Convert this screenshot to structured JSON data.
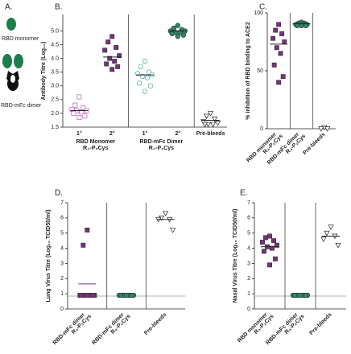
{
  "panel_a": {
    "label": "A.",
    "items": [
      "RBD monomer",
      "RBD-mFc dimer"
    ]
  },
  "chart_data": [
    {
      "type": "strip",
      "label": "B.",
      "y_label": "Antibody Titre (Log₁₀)",
      "ylim": [
        1.5,
        5.6
      ],
      "yticks": [
        1.5,
        {
          "value": 2,
          "label": "2.0"
        },
        2.5,
        {
          "value": 3,
          "label": "3.0"
        },
        3.5,
        {
          "value": 4,
          "label": "4.0"
        },
        4.5,
        {
          "value": 5,
          "label": "5.0"
        }
      ],
      "rotate_labels": false,
      "groups": [
        {
          "name": [
            "RBD Monomer",
            "R₄-P₂Cys"
          ],
          "series": [
            {
              "name": "1°",
              "color": "#b85cb8",
              "marker": "square",
              "filled": false,
              "values": [
                2.6,
                2.3,
                2.2,
                2.15,
                2.1,
                2.1,
                2.05,
                2.0,
                1.9,
                1.85
              ],
              "center_line": 2.1,
              "line_color": "#222222"
            },
            {
              "name": "2°",
              "color": "#7b2f80",
              "marker": "square",
              "filled": true,
              "values": [
                4.8,
                4.6,
                4.4,
                4.3,
                4.1,
                4.0,
                3.9,
                3.8,
                3.7,
                3.6
              ],
              "center_line": 4.05,
              "line_color": "#222222"
            }
          ]
        },
        {
          "name": [
            "RBD-mFc Dimer",
            "R₄-P₂Cys"
          ],
          "series": [
            {
              "name": "1°",
              "color": "#3aa89a",
              "marker": "circle",
              "filled": false,
              "values": [
                3.9,
                3.7,
                3.5,
                3.45,
                3.4,
                3.35,
                3.3,
                3.1,
                3.0,
                2.8
              ],
              "center_line": 3.4,
              "line_color": "#222222"
            },
            {
              "name": "2°",
              "color": "#2a8c6e",
              "marker": "circle",
              "filled": true,
              "values": [
                5.2,
                5.1,
                5.05,
                5.0,
                5.0,
                4.95,
                4.95,
                4.9,
                4.85,
                4.8
              ],
              "center_line": 5.0,
              "line_color": "#222222"
            }
          ]
        },
        {
          "name": [
            "Pre-bleeds"
          ],
          "series": [
            {
              "color": "#222222",
              "marker": "triangle",
              "filled": false,
              "values": [
                2.0,
                1.9,
                1.8,
                1.7,
                1.65,
                1.6,
                1.6,
                1.6
              ],
              "center_line": 1.75,
              "line_color": "#222222"
            }
          ]
        }
      ]
    },
    {
      "type": "strip",
      "label": "C.",
      "y_label": "% inhibition of RBD binding to ACE2",
      "ylim": [
        0,
        100
      ],
      "yticks": [
        0,
        50,
        100
      ],
      "rotate_labels": true,
      "groups": [
        {
          "name": [
            "RBD monomer",
            "R₄-P₂Cys"
          ],
          "series": [
            {
              "color": "#7b2f80",
              "marker": "square",
              "filled": true,
              "values": [
                90,
                85,
                82,
                78,
                75,
                70,
                65,
                55,
                45,
                40
              ],
              "center_line": 73,
              "line_color": "#222222"
            }
          ]
        },
        {
          "name": [
            "RBD-mFc dimer",
            "R₄-P₂Cys"
          ],
          "series": [
            {
              "color": "#2a8c6e",
              "marker": "circle",
              "filled": true,
              "values": [
                92,
                91,
                91,
                90,
                90,
                90,
                90,
                89,
                89,
                89
              ],
              "center_line": 90.5,
              "line_color": "#222222"
            }
          ]
        },
        {
          "name": [
            "Pre-bleeds"
          ],
          "series": [
            {
              "color": "#222222",
              "marker": "triangle",
              "filled": false,
              "values": [
                1,
                0,
                0
              ]
            }
          ]
        }
      ]
    },
    {
      "type": "strip",
      "label": "D.",
      "y_label": "Lung Virus Titre (Log₁₀ TCID50/ml)",
      "ylim": [
        0,
        7
      ],
      "yticks": [
        0,
        1,
        2,
        3,
        4,
        5,
        6,
        7
      ],
      "rotate_labels": true,
      "detection_limit": 0.85,
      "groups": [
        {
          "name": [
            "RBD-mFc dimer",
            "R₄-P₂Cys"
          ],
          "series": [
            {
              "color": "#7b2f80",
              "marker": "square",
              "filled": true,
              "values": [
                5.2,
                4.2,
                0.9,
                0.9,
                0.9,
                0.9,
                0.9,
                0.9,
                0.9,
                0.9
              ],
              "center_line": 1.65,
              "line_color": "#7b2f80"
            }
          ]
        },
        {
          "name": [
            "RBD-mFc dimer",
            "R₄-P₂Cys"
          ],
          "series": [
            {
              "color": "#2a8c6e",
              "marker": "circle",
              "filled": true,
              "values": [
                0.9,
                0.9,
                0.9,
                0.9,
                0.9,
                0.9,
                0.9,
                0.9,
                0.9,
                0.9
              ]
            }
          ]
        },
        {
          "name": [
            "Pre-bleeds"
          ],
          "series": [
            {
              "color": "#222222",
              "marker": "triangle",
              "filled": false,
              "values": [
                6.3,
                6.0,
                5.9,
                5.9,
                5.2
              ],
              "center_line": 5.9,
              "line_color": "#222222"
            }
          ]
        }
      ]
    },
    {
      "type": "strip",
      "label": "E.",
      "y_label": "Nasal Virus Titre (Log₁₀ TCID50/ml)",
      "ylim": [
        0,
        7
      ],
      "yticks": [
        0,
        1,
        2,
        3,
        4,
        5,
        6,
        7
      ],
      "rotate_labels": true,
      "detection_limit": 0.85,
      "groups": [
        {
          "name": [
            "RBD monomer",
            "R₄-P₂Cys"
          ],
          "series": [
            {
              "color": "#7b2f80",
              "marker": "square",
              "filled": true,
              "values": [
                4.8,
                4.7,
                4.5,
                4.4,
                4.2,
                4.1,
                4.0,
                3.8,
                3.3,
                2.9
              ],
              "center_line": 4.1,
              "line_color": "#222222"
            }
          ]
        },
        {
          "name": [
            "RBD-mFc dimer",
            "R₄-P₂Cys"
          ],
          "series": [
            {
              "color": "#2a8c6e",
              "marker": "circle",
              "filled": true,
              "values": [
                0.9,
                0.9,
                0.9,
                0.9,
                0.9,
                0.9,
                0.9,
                0.9,
                0.9,
                0.9
              ]
            }
          ]
        },
        {
          "name": [
            "Pre-bleeds"
          ],
          "series": [
            {
              "color": "#222222",
              "marker": "triangle",
              "filled": false,
              "values": [
                5.4,
                5.0,
                4.8,
                4.6,
                4.2
              ],
              "center_line": 4.8,
              "line_color": "#222222"
            }
          ]
        }
      ]
    }
  ]
}
